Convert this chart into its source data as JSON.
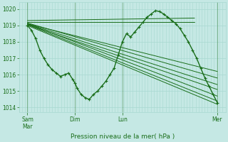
{
  "bg_color": "#c5e8e4",
  "grid_color": "#a8d8d0",
  "line_color": "#1a6e1a",
  "ylim": [
    1013.7,
    1020.4
  ],
  "xlim": [
    0.0,
    1.0
  ],
  "yticks": [
    1014,
    1015,
    1016,
    1017,
    1018,
    1019,
    1020
  ],
  "xlabel": "Pression niveau de la mer( hPa )",
  "xtick_labels": [
    "Sam\nMar",
    "Dim",
    "Lun",
    "Mer"
  ],
  "xtick_positions": [
    0.04,
    0.27,
    0.5,
    0.96
  ],
  "fan_lines": [
    {
      "x": [
        0.04,
        0.96
      ],
      "y": [
        1019.0,
        1014.2
      ]
    },
    {
      "x": [
        0.04,
        0.96
      ],
      "y": [
        1019.05,
        1014.4
      ]
    },
    {
      "x": [
        0.04,
        0.96
      ],
      "y": [
        1019.1,
        1014.7
      ]
    },
    {
      "x": [
        0.04,
        0.96
      ],
      "y": [
        1019.05,
        1015.1
      ]
    },
    {
      "x": [
        0.04,
        0.96
      ],
      "y": [
        1019.1,
        1015.4
      ]
    },
    {
      "x": [
        0.04,
        0.96
      ],
      "y": [
        1019.15,
        1015.8
      ]
    },
    {
      "x": [
        0.04,
        0.96
      ],
      "y": [
        1019.1,
        1016.2
      ]
    },
    {
      "x": [
        0.04,
        0.85
      ],
      "y": [
        1019.2,
        1019.2
      ]
    },
    {
      "x": [
        0.04,
        0.85
      ],
      "y": [
        1019.3,
        1019.45
      ]
    }
  ],
  "main_curve_x": [
    0.04,
    0.06,
    0.08,
    0.1,
    0.12,
    0.14,
    0.16,
    0.18,
    0.2,
    0.22,
    0.24,
    0.26,
    0.27,
    0.28,
    0.3,
    0.32,
    0.34,
    0.36,
    0.38,
    0.4,
    0.42,
    0.44,
    0.46,
    0.48,
    0.5,
    0.52,
    0.54,
    0.56,
    0.58,
    0.6,
    0.62,
    0.64,
    0.66,
    0.68,
    0.7,
    0.72,
    0.74,
    0.76,
    0.78,
    0.8,
    0.82,
    0.84,
    0.86,
    0.88,
    0.9,
    0.92,
    0.94,
    0.96
  ],
  "main_curve_y": [
    1019.0,
    1018.7,
    1018.2,
    1017.5,
    1017.0,
    1016.6,
    1016.3,
    1016.1,
    1015.9,
    1016.0,
    1016.1,
    1015.7,
    1015.5,
    1015.2,
    1014.8,
    1014.6,
    1014.5,
    1014.8,
    1015.0,
    1015.3,
    1015.6,
    1016.0,
    1016.4,
    1017.2,
    1018.0,
    1018.5,
    1018.3,
    1018.6,
    1018.9,
    1019.2,
    1019.5,
    1019.7,
    1019.9,
    1019.85,
    1019.7,
    1019.5,
    1019.3,
    1019.1,
    1018.8,
    1018.4,
    1018.0,
    1017.5,
    1017.0,
    1016.4,
    1015.8,
    1015.3,
    1014.8,
    1014.3
  ]
}
